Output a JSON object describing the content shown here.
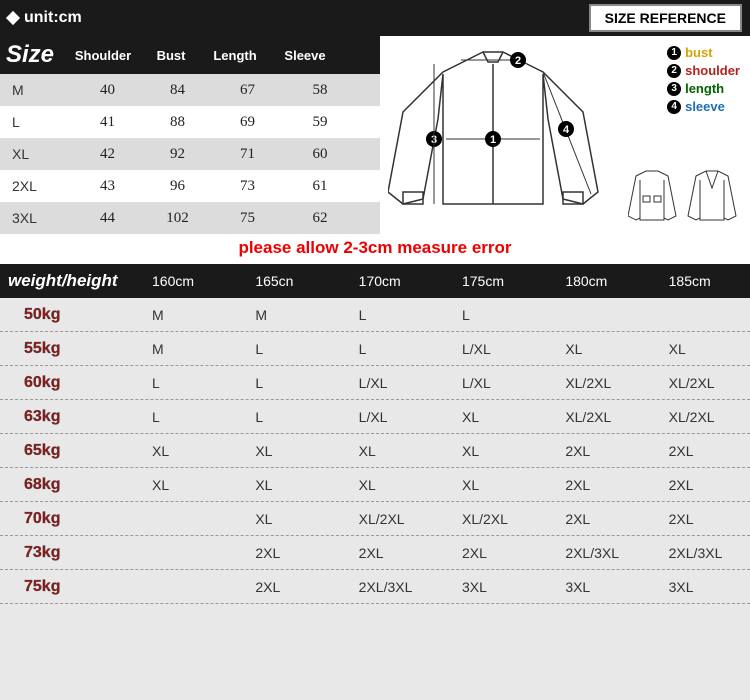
{
  "header": {
    "unit": "unit:cm",
    "sizeRef": "SIZE REFERENCE"
  },
  "sizeTable": {
    "title": "Size",
    "columns": [
      "Shoulder",
      "Bust",
      "Length",
      "Sleeve"
    ],
    "rows": [
      {
        "label": "M",
        "vals": [
          "40",
          "84",
          "67",
          "58"
        ]
      },
      {
        "label": "L",
        "vals": [
          "41",
          "88",
          "69",
          "59"
        ]
      },
      {
        "label": "XL",
        "vals": [
          "42",
          "92",
          "71",
          "60"
        ]
      },
      {
        "label": "2XL",
        "vals": [
          "43",
          "96",
          "73",
          "61"
        ]
      },
      {
        "label": "3XL",
        "vals": [
          "44",
          "102",
          "75",
          "62"
        ]
      }
    ]
  },
  "legend": [
    {
      "num": "1",
      "text": "bust",
      "color": "#d4a500"
    },
    {
      "num": "2",
      "text": "shoulder",
      "color": "#b22222"
    },
    {
      "num": "3",
      "text": "length",
      "color": "#006400"
    },
    {
      "num": "4",
      "text": "sleeve",
      "color": "#1e6fb8"
    }
  ],
  "errorNote": "please allow 2-3cm measure error",
  "whTable": {
    "title": "weight/height",
    "columns": [
      "160cm",
      "165cn",
      "170cm",
      "175cm",
      "180cm",
      "185cm"
    ],
    "rows": [
      {
        "w": "50kg",
        "c": [
          "M",
          "M",
          "L",
          "L",
          "",
          ""
        ]
      },
      {
        "w": "55kg",
        "c": [
          "M",
          "L",
          "L",
          "L/XL",
          "XL",
          "XL"
        ]
      },
      {
        "w": "60kg",
        "c": [
          "L",
          "L",
          "L/XL",
          "L/XL",
          "XL/2XL",
          "XL/2XL"
        ]
      },
      {
        "w": "63kg",
        "c": [
          "L",
          "L",
          "L/XL",
          "XL",
          "XL/2XL",
          "XL/2XL"
        ]
      },
      {
        "w": "65kg",
        "c": [
          "XL",
          "XL",
          "XL",
          "XL",
          "2XL",
          "2XL"
        ]
      },
      {
        "w": "68kg",
        "c": [
          "XL",
          "XL",
          "XL",
          "XL",
          "2XL",
          "2XL"
        ]
      },
      {
        "w": "70kg",
        "c": [
          "",
          "XL",
          "XL/2XL",
          "XL/2XL",
          "2XL",
          "2XL"
        ]
      },
      {
        "w": "73kg",
        "c": [
          "",
          "2XL",
          "2XL",
          "2XL",
          "2XL/3XL",
          "2XL/3XL"
        ]
      },
      {
        "w": "75kg",
        "c": [
          "",
          "2XL",
          "2XL/3XL",
          "3XL",
          "3XL",
          "3XL"
        ]
      }
    ]
  },
  "colors": {
    "headerBg": "#1a1a1a",
    "rowAlt": "#dcdcdc",
    "errorText": "#e00000",
    "weightLabel": "#8b1a1a"
  }
}
